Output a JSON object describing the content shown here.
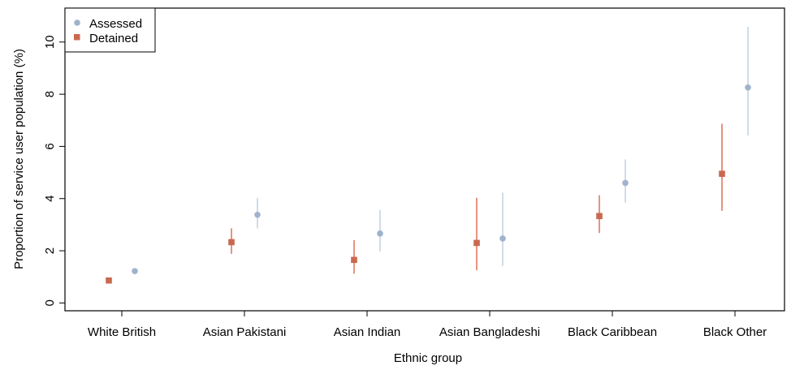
{
  "chart_data": {
    "type": "scatter",
    "xlabel": "Ethnic group",
    "ylabel": "Proportion of service user population (%)",
    "categories": [
      "White British",
      "Asian Pakistani",
      "Asian Indian",
      "Asian Bangladeshi",
      "Black Caribbean",
      "Black Other"
    ],
    "ylim": [
      -0.3,
      11.3
    ],
    "yticks": [
      0,
      2,
      4,
      6,
      8,
      10
    ],
    "legend_position": "top-left",
    "series": [
      {
        "name": "Assessed",
        "marker": "circle",
        "color": "#9fb3cc",
        "errorbar_color": "#c5d3e2",
        "values": [
          1.22,
          3.38,
          2.66,
          2.47,
          4.6,
          8.26
        ],
        "lower": [
          1.18,
          2.86,
          1.98,
          1.42,
          3.85,
          6.42
        ],
        "upper": [
          1.26,
          4.03,
          3.56,
          4.23,
          5.5,
          10.58
        ]
      },
      {
        "name": "Detained",
        "marker": "square",
        "color": "#c9694f",
        "errorbar_color": "#e07a62",
        "values": [
          0.86,
          2.33,
          1.65,
          2.3,
          3.33,
          4.95
        ],
        "lower": [
          0.82,
          1.88,
          1.12,
          1.25,
          2.68,
          3.53
        ],
        "upper": [
          0.9,
          2.86,
          2.41,
          4.03,
          4.13,
          6.87
        ]
      }
    ]
  }
}
